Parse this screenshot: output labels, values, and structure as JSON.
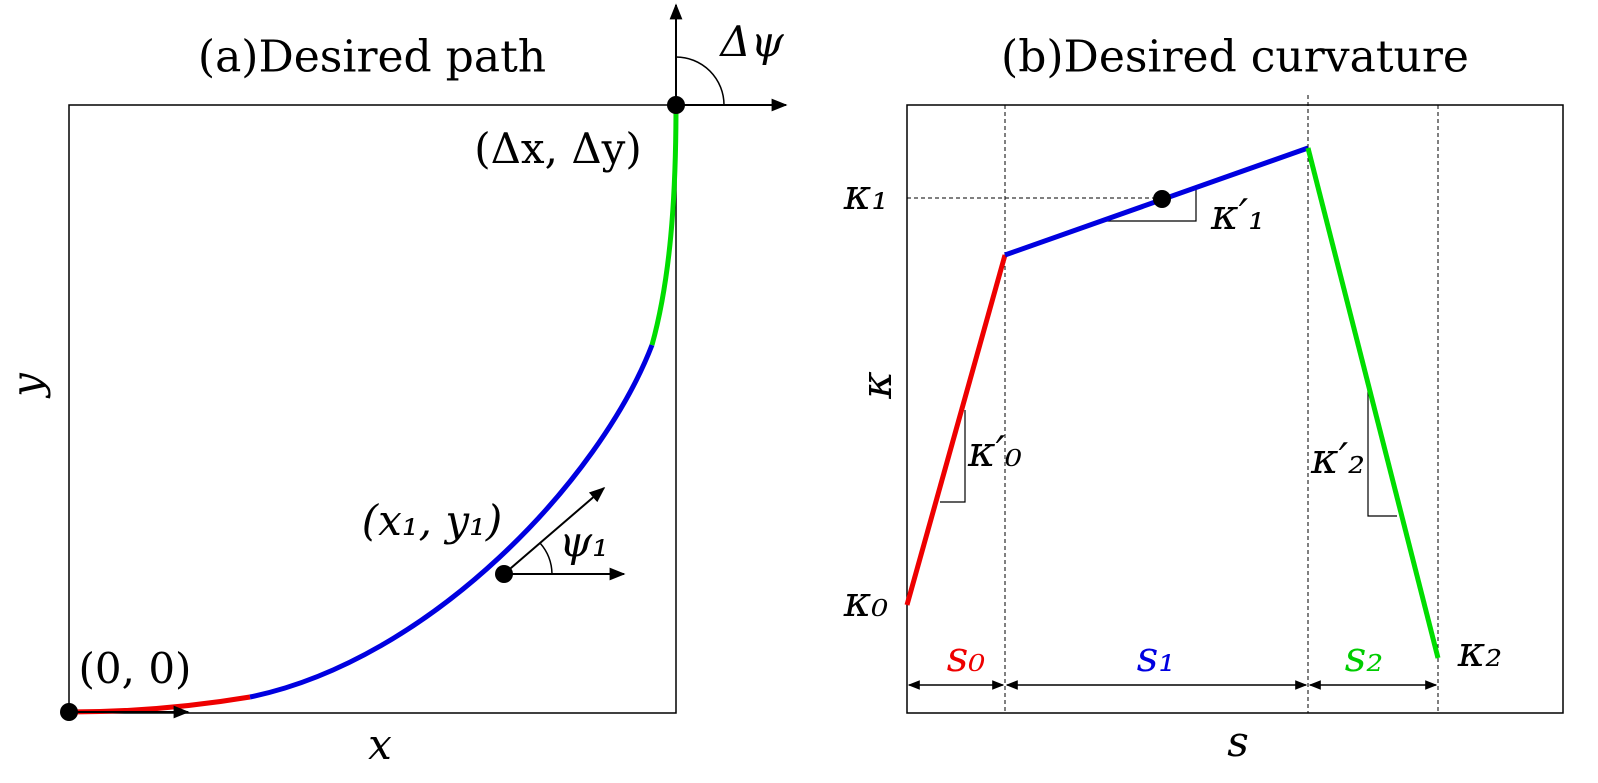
{
  "panel_a": {
    "title": "(a)Desired path",
    "delta_psi": "Δψ",
    "end_point": "(Δx, Δy)",
    "y_axis": "y",
    "x_axis": "x",
    "origin": "(0, 0)",
    "mid_point": "(x₁, y₁)",
    "psi1": "ψ₁"
  },
  "panel_b": {
    "title": "(b)Desired curvature",
    "kappa1": "κ₁",
    "kappa1_prime": "κ′₁",
    "kappa_axis": "κ",
    "kappa0_prime": "κ′₀",
    "kappa2_prime": "κ′₂",
    "kappa0": "κ₀",
    "kappa2": "κ₂",
    "s0": "s₀",
    "s1": "s₁",
    "s2": "s₂",
    "s_axis": "s"
  }
}
